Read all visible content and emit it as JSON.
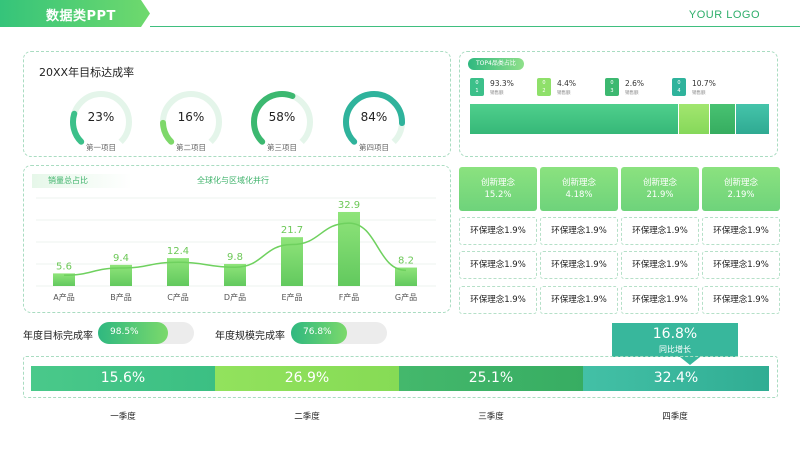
{
  "header": {
    "title": "数据类PPT",
    "logo": "YOUR LOGO"
  },
  "panel_targets": {
    "title": "20XX年目标达成率",
    "gauges": [
      {
        "value": "23%",
        "label": "第一项目",
        "fraction": 0.23,
        "color": "#3cc08a"
      },
      {
        "value": "16%",
        "label": "第二项目",
        "fraction": 0.16,
        "color": "#7ed86a"
      },
      {
        "value": "58%",
        "label": "第三项目",
        "fraction": 0.58,
        "color": "#3cb870"
      },
      {
        "value": "84%",
        "label": "第四项目",
        "fraction": 0.84,
        "color": "#2fb39c"
      }
    ]
  },
  "panel_sales": {
    "tab_label": "销量总占比",
    "subtitle": "全球化与区域化并行"
  },
  "chart_data": {
    "type": "bar",
    "categories": [
      "A产品",
      "B产品",
      "C产品",
      "D产品",
      "E产品",
      "F产品",
      "G产品"
    ],
    "values": [
      5.6,
      9.4,
      12.4,
      9.8,
      21.7,
      32.9,
      8.2
    ],
    "data_labels": [
      "5.6",
      "9.4",
      "12.4",
      "9.8",
      "21.7",
      "32.9",
      "8.2"
    ],
    "ylim": [
      0,
      40
    ],
    "overlay": "smooth-line",
    "grid": true,
    "colors": {
      "bar": "#7ed96a",
      "line": "#6fd15f",
      "label": "#6cc857"
    }
  },
  "rates": [
    {
      "label": "年度目标完成率",
      "value": "98.5%",
      "fraction": 0.985
    },
    {
      "label": "年度规模完成率",
      "value": "76.8%",
      "fraction": 0.768
    }
  ],
  "top4": {
    "title": "TOP4品类占比",
    "items": [
      {
        "badge_top": "0",
        "badge_bottom": "1",
        "pct": "93.3%",
        "sub": "销售额",
        "share": 0.933,
        "color": "#3cc08a"
      },
      {
        "badge_top": "0",
        "badge_bottom": "2",
        "pct": "4.4%",
        "sub": "销售额",
        "share": 0.044,
        "color": "#8fe06a"
      },
      {
        "badge_top": "0",
        "badge_bottom": "3",
        "pct": "2.6%",
        "sub": "销售额",
        "share": 0.026,
        "color": "#3cb870"
      },
      {
        "badge_top": "0",
        "badge_bottom": "4",
        "pct": "10.7%",
        "sub": "销售额",
        "share": 0.107,
        "color": "#2fb39c"
      }
    ]
  },
  "grid": {
    "headers": [
      {
        "title": "创新理念",
        "value": "15.2%"
      },
      {
        "title": "创新理念",
        "value": "4.18%"
      },
      {
        "title": "创新理念",
        "value": "21.9%"
      },
      {
        "title": "创新理念",
        "value": "2.19%"
      }
    ],
    "rows": [
      [
        "环保理念1.9%",
        "环保理念1.9%",
        "环保理念1.9%",
        "环保理念1.9%"
      ],
      [
        "环保理念1.9%",
        "环保理念1.9%",
        "环保理念1.9%",
        "环保理念1.9%"
      ],
      [
        "环保理念1.9%",
        "环保理念1.9%",
        "环保理念1.9%",
        "环保理念1.9%"
      ]
    ]
  },
  "quarters": {
    "segments": [
      {
        "value": "15.6%",
        "label": "一季度",
        "color": "#45c78a"
      },
      {
        "value": "26.9%",
        "label": "二季度",
        "color": "#8fe05a"
      },
      {
        "value": "25.1%",
        "label": "三季度",
        "color": "#3cb369"
      },
      {
        "value": "32.4%",
        "label": "四季度",
        "color": "#36b8a0"
      }
    ],
    "callout": {
      "value": "16.8%",
      "label": "同比增长"
    }
  }
}
